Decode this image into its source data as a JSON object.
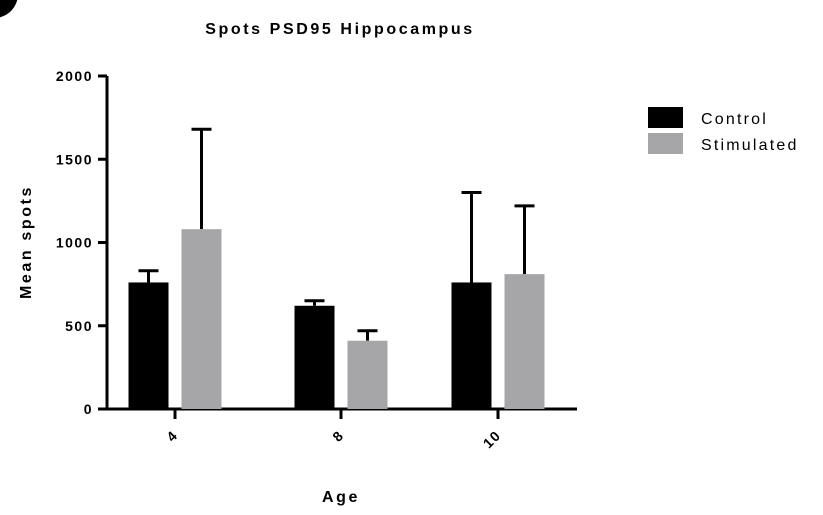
{
  "chart_data": {
    "type": "bar",
    "title": "Spots PSD95 Hippocampus",
    "xlabel": "Age",
    "ylabel": "Mean spots",
    "categories": [
      "4",
      "8",
      "10"
    ],
    "ylim": [
      0,
      2000
    ],
    "yticks": [
      0,
      500,
      1000,
      1500,
      2000
    ],
    "grid": false,
    "legend_position": "top-right",
    "error_bars": "upper",
    "series": [
      {
        "name": "Control",
        "color": "#000000",
        "values": [
          760,
          620,
          760
        ],
        "errors": [
          70,
          30,
          540
        ]
      },
      {
        "name": "Stimulated",
        "color": "#a6a6a8",
        "values": [
          1080,
          410,
          810
        ],
        "errors": [
          600,
          60,
          410
        ]
      }
    ]
  }
}
